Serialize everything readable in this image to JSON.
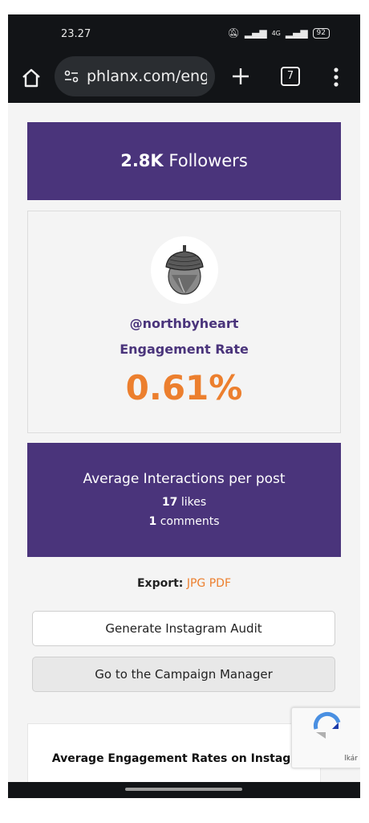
{
  "status": {
    "time": "23.27",
    "network": "4G",
    "battery": "92"
  },
  "browser": {
    "url": "phlanx.com/enga",
    "tab_count": "7"
  },
  "followers": {
    "count": "2.8K",
    "label": "Followers"
  },
  "profile": {
    "handle": "@northbyheart",
    "engagement_label": "Engagement Rate",
    "engagement_value": "0.61%"
  },
  "interactions": {
    "title": "Average Interactions per post",
    "likes_count": "17",
    "likes_label": "likes",
    "comments_count": "1",
    "comments_label": "comments"
  },
  "export": {
    "label": "Export:",
    "jpg": "JPG",
    "pdf": "PDF"
  },
  "buttons": {
    "audit": "Generate Instagram Audit",
    "campaign": "Go to the Campaign Manager"
  },
  "rates": {
    "title": "Average Engagement Rates on Instagram"
  },
  "recaptcha": {
    "text": "lkár"
  },
  "colors": {
    "purple": "#4a347b",
    "orange": "#ec7f2e",
    "bar": "#121417"
  },
  "icons": [
    "home-icon",
    "tune-icon",
    "plus-icon",
    "tabs-icon",
    "more-vert-icon",
    "acorn-icon",
    "recaptcha-icon"
  ]
}
